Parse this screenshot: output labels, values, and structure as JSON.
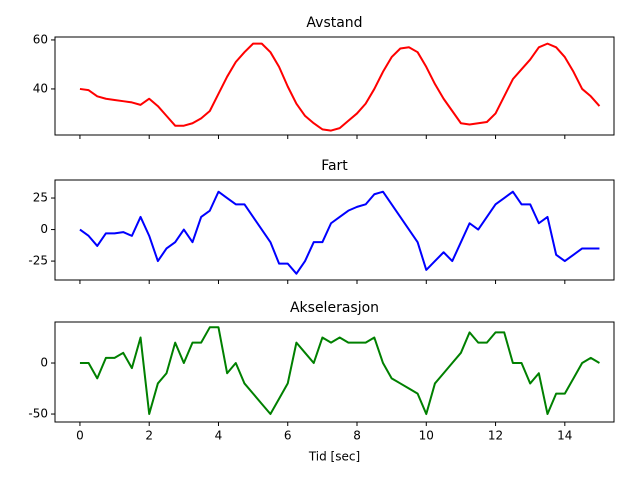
{
  "chart_data": [
    {
      "type": "line",
      "title": "Avstand",
      "color": "#ff0000",
      "x": [
        0,
        0.25,
        0.5,
        0.75,
        1,
        1.25,
        1.5,
        1.75,
        2,
        2.25,
        2.5,
        2.75,
        3,
        3.25,
        3.5,
        3.75,
        4,
        4.25,
        4.5,
        4.75,
        5,
        5.25,
        5.5,
        5.75,
        6,
        6.25,
        6.5,
        6.75,
        7,
        7.25,
        7.5,
        7.75,
        8,
        8.25,
        8.5,
        8.75,
        9,
        9.25,
        9.5,
        9.75,
        10,
        10.25,
        10.5,
        10.75,
        11,
        11.25,
        11.5,
        11.75,
        12,
        12.25,
        12.5,
        12.75,
        13,
        13.25,
        13.5,
        13.75,
        14,
        14.25,
        14.5,
        14.75,
        15
      ],
      "values": [
        40,
        39.5,
        37,
        36,
        35.5,
        35,
        34.5,
        33.5,
        36,
        33,
        29,
        25,
        25,
        26,
        28,
        31,
        38,
        45,
        51,
        55,
        58.5,
        58.5,
        55,
        49,
        41,
        34,
        29,
        26,
        23.5,
        23,
        24,
        27,
        30,
        34,
        40,
        47,
        53,
        56.5,
        57,
        55,
        49,
        42,
        36,
        31,
        26,
        25.5,
        26,
        26.5,
        30,
        37,
        44,
        48,
        52,
        57,
        58.5,
        57,
        53,
        47,
        40,
        37,
        33
      ],
      "xlim": [
        -0.72,
        15.42
      ],
      "xticks": [
        0,
        2,
        4,
        6,
        8,
        10,
        12,
        14
      ],
      "ylim": [
        21.2,
        61.2
      ],
      "yticks": [
        40,
        60
      ]
    },
    {
      "type": "line",
      "title": "Fart",
      "color": "#0000ff",
      "x": [
        0,
        0.25,
        0.5,
        0.75,
        1,
        1.25,
        1.5,
        1.75,
        2,
        2.25,
        2.5,
        2.75,
        3,
        3.25,
        3.5,
        3.75,
        4,
        4.25,
        4.5,
        4.75,
        5,
        5.25,
        5.5,
        5.75,
        6,
        6.25,
        6.5,
        6.75,
        7,
        7.25,
        7.5,
        7.75,
        8,
        8.25,
        8.5,
        8.75,
        9,
        9.25,
        9.5,
        9.75,
        10,
        10.25,
        10.5,
        10.75,
        11,
        11.25,
        11.5,
        11.75,
        12,
        12.25,
        12.5,
        12.75,
        13,
        13.25,
        13.5,
        13.75,
        14,
        14.25,
        14.5,
        14.75,
        15
      ],
      "values": [
        0,
        -5,
        -13,
        -3,
        -3,
        -2,
        -5,
        10,
        -5,
        -25,
        -15,
        -10,
        0,
        -10,
        10,
        15,
        30,
        25,
        20,
        20,
        10,
        0,
        -10,
        -27,
        -27,
        -35,
        -25,
        -10,
        -10,
        5,
        10,
        15,
        18,
        20,
        28,
        30,
        20,
        10,
        0,
        -10,
        -32,
        -25,
        -18,
        -25,
        -10,
        5,
        0,
        10,
        20,
        25,
        30,
        20,
        20,
        5,
        10,
        -20,
        -25,
        -20,
        -15,
        -15,
        -15
      ],
      "xlim": [
        -0.72,
        15.42
      ],
      "xticks": [
        0,
        2,
        4,
        6,
        8,
        10,
        12,
        14
      ],
      "ylim": [
        -40,
        39.3
      ],
      "yticks": [
        -25,
        0,
        25
      ]
    },
    {
      "type": "line",
      "title": "Akselerasjon",
      "color": "#008000",
      "xlabel": "Tid [sec]",
      "x": [
        0,
        0.25,
        0.5,
        0.75,
        1,
        1.25,
        1.5,
        1.75,
        2,
        2.25,
        2.5,
        2.75,
        3,
        3.25,
        3.5,
        3.75,
        4,
        4.25,
        4.5,
        4.75,
        5,
        5.25,
        5.5,
        5.75,
        6,
        6.25,
        6.5,
        6.75,
        7,
        7.25,
        7.5,
        7.75,
        8,
        8.25,
        8.5,
        8.75,
        9,
        9.25,
        9.5,
        9.75,
        10,
        10.25,
        10.5,
        10.75,
        11,
        11.25,
        11.5,
        11.75,
        12,
        12.25,
        12.5,
        12.75,
        13,
        13.25,
        13.5,
        13.75,
        14,
        14.25,
        14.5,
        14.75,
        15
      ],
      "values": [
        0,
        0,
        -15,
        5,
        5,
        10,
        -5,
        25,
        -50,
        -20,
        -10,
        20,
        0,
        20,
        20,
        35,
        35,
        -10,
        0,
        -20,
        -30,
        -40,
        -50,
        -35,
        -20,
        20,
        10,
        0,
        25,
        20,
        25,
        20,
        20,
        20,
        25,
        0,
        -15,
        -20,
        -25,
        -30,
        -50,
        -20,
        -10,
        0,
        10,
        30,
        20,
        20,
        30,
        30,
        0,
        0,
        -20,
        -10,
        -50,
        -30,
        -30,
        -15,
        0,
        5,
        0
      ],
      "xlim": [
        -0.72,
        15.42
      ],
      "xticks": [
        0,
        2,
        4,
        6,
        8,
        10,
        12,
        14
      ],
      "ylim": [
        -57.8,
        40.2
      ],
      "yticks": [
        -50,
        0
      ]
    }
  ]
}
